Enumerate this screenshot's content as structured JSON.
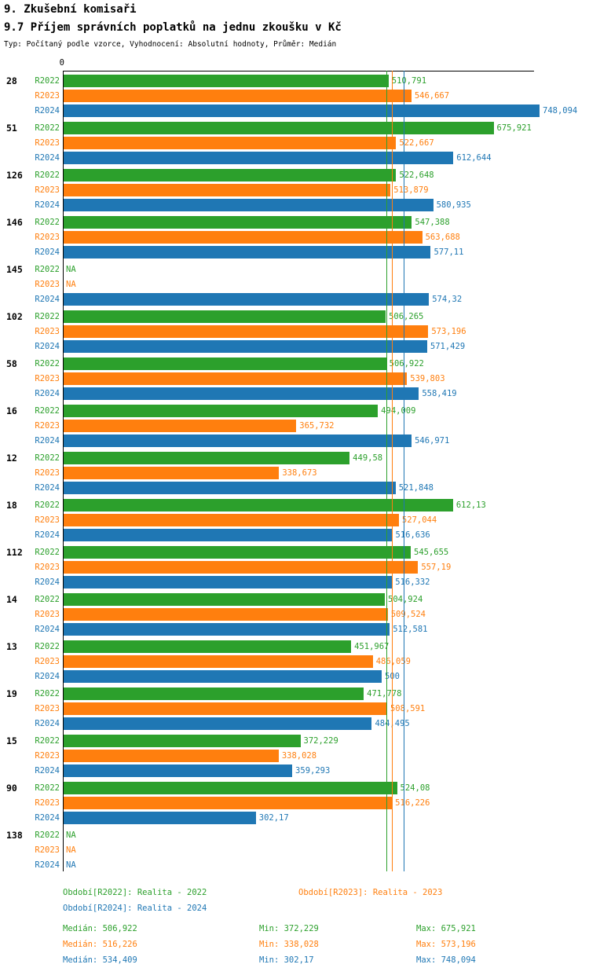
{
  "header": {
    "title1": "9. Zkušební komisaři",
    "title2": "9.7 Příjem správních poplatků na jednu zkoušku v Kč",
    "subtitle": "Typ: Počítaný podle vzorce, Vyhodnocení: Absolutní hodnoty, Průměr: Medián"
  },
  "chart_data": {
    "type": "bar",
    "orientation": "horizontal",
    "axis": {
      "origin_label": "0",
      "xlim": [
        0,
        800
      ],
      "grid": false
    },
    "na_label": "NA",
    "series": [
      {
        "name": "R2022",
        "color": "#2ca02c"
      },
      {
        "name": "R2023",
        "color": "#ff7f0e"
      },
      {
        "name": "R2024",
        "color": "#1f77b4"
      }
    ],
    "groups": [
      {
        "label": "28",
        "values": [
          510.791,
          546.667,
          748.094
        ],
        "displays": [
          "510,791",
          "546,667",
          "748,094"
        ]
      },
      {
        "label": "51",
        "values": [
          675.921,
          522.667,
          612.644
        ],
        "displays": [
          "675,921",
          "522,667",
          "612,644"
        ]
      },
      {
        "label": "126",
        "values": [
          522.648,
          513.879,
          580.935
        ],
        "displays": [
          "522,648",
          "513,879",
          "580,935"
        ]
      },
      {
        "label": "146",
        "values": [
          547.388,
          563.688,
          577.11
        ],
        "displays": [
          "547,388",
          "563,688",
          "577,11"
        ]
      },
      {
        "label": "145",
        "values": [
          null,
          null,
          574.32
        ],
        "displays": [
          null,
          null,
          "574,32"
        ]
      },
      {
        "label": "102",
        "values": [
          506.265,
          573.196,
          571.429
        ],
        "displays": [
          "506,265",
          "573,196",
          "571,429"
        ]
      },
      {
        "label": "58",
        "values": [
          506.922,
          539.803,
          558.419
        ],
        "displays": [
          "506,922",
          "539,803",
          "558,419"
        ]
      },
      {
        "label": "16",
        "values": [
          494.009,
          365.732,
          546.971
        ],
        "displays": [
          "494,009",
          "365,732",
          "546,971"
        ]
      },
      {
        "label": "12",
        "values": [
          449.58,
          338.673,
          521.848
        ],
        "displays": [
          "449,58",
          "338,673",
          "521,848"
        ]
      },
      {
        "label": "18",
        "values": [
          612.13,
          527.044,
          516.636
        ],
        "displays": [
          "612,13",
          "527,044",
          "516,636"
        ]
      },
      {
        "label": "112",
        "values": [
          545.655,
          557.19,
          516.332
        ],
        "displays": [
          "545,655",
          "557,19",
          "516,332"
        ]
      },
      {
        "label": "14",
        "values": [
          504.924,
          509.524,
          512.581
        ],
        "displays": [
          "504,924",
          "509,524",
          "512,581"
        ]
      },
      {
        "label": "13",
        "values": [
          451.967,
          486.059,
          500
        ],
        "displays": [
          "451,967",
          "486,059",
          "500"
        ]
      },
      {
        "label": "19",
        "values": [
          471.778,
          508.591,
          484.495
        ],
        "displays": [
          "471,778",
          "508,591",
          "484,495"
        ]
      },
      {
        "label": "15",
        "values": [
          372.229,
          338.028,
          359.293
        ],
        "displays": [
          "372,229",
          "338,028",
          "359,293"
        ]
      },
      {
        "label": "90",
        "values": [
          524.08,
          516.226,
          302.17
        ],
        "displays": [
          "524,08",
          "516,226",
          "302,17"
        ]
      },
      {
        "label": "138",
        "values": [
          null,
          null,
          null
        ],
        "displays": [
          null,
          null,
          null
        ]
      }
    ],
    "median_lines": [
      {
        "series": "R2022",
        "value": 506.922,
        "color": "#2ca02c"
      },
      {
        "series": "R2023",
        "value": 516.226,
        "color": "#ff7f0e"
      },
      {
        "series": "R2024",
        "value": 534.409,
        "color": "#1f77b4"
      }
    ]
  },
  "legend": {
    "items": [
      {
        "label": "Období[R2022]: Realita - 2022",
        "color": "#2ca02c"
      },
      {
        "label": "Období[R2023]: Realita - 2023",
        "color": "#ff7f0e"
      },
      {
        "label": "Období[R2024]: Realita - 2024",
        "color": "#1f77b4"
      }
    ]
  },
  "stats": {
    "rows": [
      {
        "median": "Medián: 506,922",
        "min": "Min: 372,229",
        "max": "Max: 675,921",
        "color": "#2ca02c"
      },
      {
        "median": "Medián: 516,226",
        "min": "Min: 338,028",
        "max": "Max: 573,196",
        "color": "#ff7f0e"
      },
      {
        "median": "Medián: 534,409",
        "min": "Min: 302,17",
        "max": "Max: 748,094",
        "color": "#1f77b4"
      }
    ]
  }
}
